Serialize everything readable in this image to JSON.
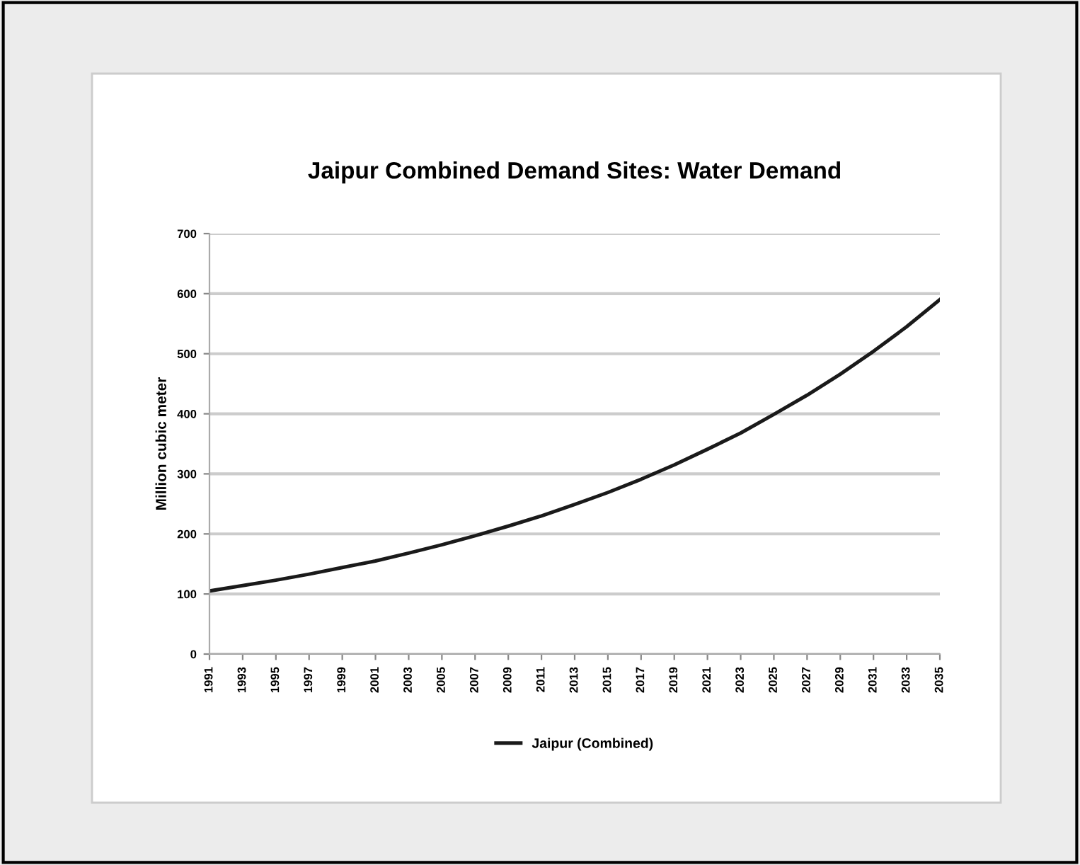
{
  "chart_data": {
    "type": "line",
    "title": "Jaipur Combined Demand Sites: Water Demand",
    "ylabel": "Million cubic meter",
    "x": [
      1991,
      1993,
      1995,
      1997,
      1999,
      2001,
      2003,
      2005,
      2007,
      2009,
      2011,
      2013,
      2015,
      2017,
      2019,
      2021,
      2023,
      2025,
      2027,
      2029,
      2031,
      2033,
      2035
    ],
    "series": [
      {
        "name": "Jaipur (Combined)",
        "color": "#1a1a1a",
        "values": [
          105,
          114,
          123,
          133,
          144,
          155,
          168,
          182,
          197,
          213,
          230,
          249,
          269,
          291,
          315,
          341,
          368,
          399,
          431,
          466,
          504,
          545,
          590
        ]
      }
    ],
    "xlim": [
      1991,
      2035
    ],
    "xticks": [
      1991,
      1993,
      1995,
      1997,
      1999,
      2001,
      2003,
      2005,
      2007,
      2009,
      2011,
      2013,
      2015,
      2017,
      2019,
      2021,
      2023,
      2025,
      2027,
      2029,
      2031,
      2033,
      2035
    ],
    "ylim": [
      0,
      700
    ],
    "yticks": [
      0,
      100,
      200,
      300,
      400,
      500,
      600,
      700
    ],
    "grid": "y",
    "legend": "bottom",
    "marker": "none",
    "line_style": "solid"
  }
}
